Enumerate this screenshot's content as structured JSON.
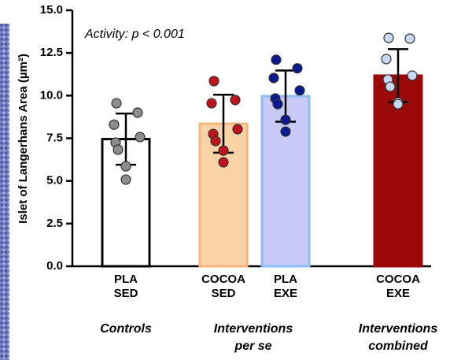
{
  "chart_data": {
    "type": "bar",
    "ylabel": "Islet of Langerhans Area (µm²)",
    "annotation": "Activity: p < 0.001",
    "ylim": [
      0,
      15
    ],
    "yticks": [
      {
        "value": 0,
        "label": "0.0"
      },
      2.5,
      {
        "value": 5,
        "label": "5.0"
      },
      7.5,
      {
        "value": 10,
        "label": "10.0"
      },
      12.5,
      {
        "value": 15,
        "label": "15.0"
      }
    ],
    "categories": [
      [
        "PLA",
        "SED"
      ],
      [
        "COCOA",
        "SED"
      ],
      [
        "PLA",
        "EXE"
      ],
      [
        "COCOA",
        "EXE"
      ]
    ],
    "group_labels": [
      [
        "Controls"
      ],
      [
        "Interventions",
        "per se"
      ],
      [
        "Interventions",
        "combined"
      ]
    ],
    "bars": [
      {
        "value": 7.45,
        "sd": 1.5,
        "fill": "#ffffff",
        "stroke": "#000000",
        "point_color": "#8c8c8c",
        "points": [
          9.55,
          9.0,
          8.3,
          7.57,
          7.25,
          6.83,
          5.86,
          5.08
        ]
      },
      {
        "value": 8.35,
        "sd": 1.7,
        "fill": "#f9d2a6",
        "stroke": "#f4b57a",
        "point_color": "#c0141a",
        "points": [
          10.85,
          9.74,
          9.55,
          8.03,
          7.75,
          7.34,
          6.78,
          6.09
        ]
      },
      {
        "value": 9.97,
        "sd": 1.5,
        "fill": "#c9c9f7",
        "stroke": "#8fbff0",
        "point_color": "#0a1a8c",
        "points": [
          12.1,
          11.6,
          11.03,
          10.3,
          9.83,
          9.5,
          8.58,
          7.89
        ]
      },
      {
        "value": 11.17,
        "sd": 1.55,
        "fill": "#9b0a0a",
        "stroke": "#9b0a0a",
        "point_color": "#c8d8f0",
        "points": [
          13.38,
          13.34,
          12.14,
          11.17,
          10.94,
          10.52,
          9.6,
          9.5
        ]
      }
    ]
  }
}
